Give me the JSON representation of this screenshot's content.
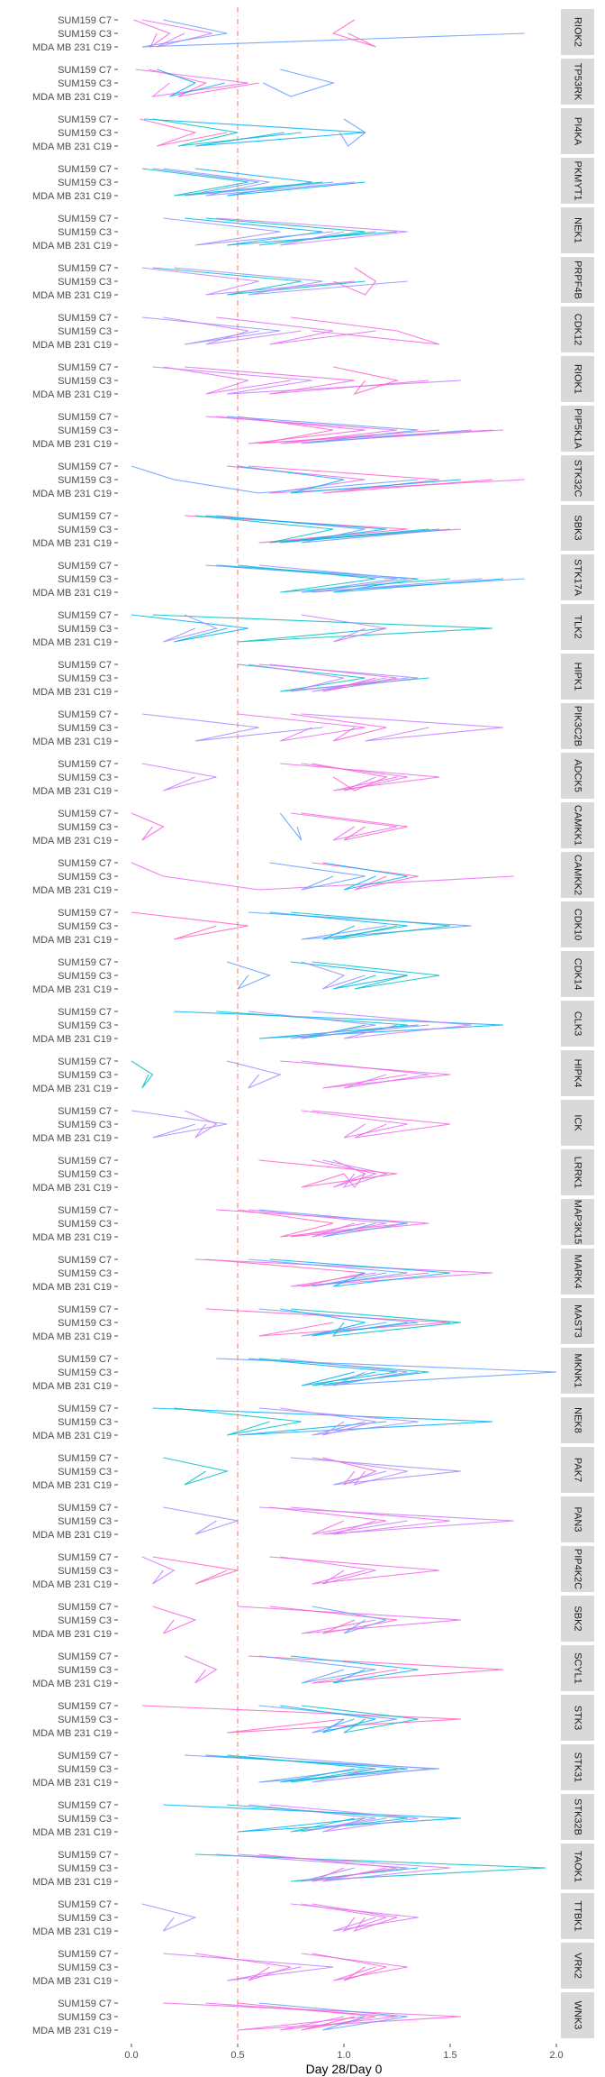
{
  "chart_data": {
    "type": "line",
    "xlabel": "Day 28/Day 0",
    "ylabel": "",
    "xlim": [
      0.0,
      2.0
    ],
    "x_ticks": [
      "0.0",
      "0.5",
      "1.0",
      "1.5",
      "2.0"
    ],
    "x_tick_values": [
      0.0,
      0.5,
      1.0,
      1.5,
      2.0
    ],
    "reference_line": {
      "x": 0.5,
      "style": "dashed",
      "color": "#f8766d"
    },
    "y_categories": [
      "SUM159 C7",
      "SUM159 C3",
      "MDA MB 231 C19"
    ],
    "series_colors": [
      "#f564e3",
      "#e76bf3",
      "#ff61c3",
      "#619cff",
      "#00b0f6",
      "#00bfc4",
      "#9590ff",
      "#c77cff"
    ],
    "panels": [
      {
        "label": "RIOK2",
        "lines": [
          [
            0.01,
            0.18,
            0.09,
            0.12
          ],
          [
            0.05,
            0.38,
            0.12,
            0.25
          ],
          [
            1.05,
            0.95,
            1.15,
            1.02
          ],
          [
            0.15,
            0.45,
            0.05,
            1.85
          ]
        ]
      },
      {
        "label": "TP53RK",
        "lines": [
          [
            0.02,
            0.55,
            0.1,
            0.18
          ],
          [
            0.08,
            0.35,
            0.22,
            0.6
          ],
          [
            0.7,
            0.95,
            0.75,
            0.62
          ],
          [
            0.12,
            0.3,
            0.18,
            0.44
          ]
        ]
      },
      {
        "label": "PI4KA",
        "lines": [
          [
            0.04,
            0.3,
            0.12,
            0.45
          ],
          [
            1.0,
            1.1,
            1.02,
            0.98
          ],
          [
            0.06,
            1.1,
            0.3,
            0.72
          ],
          [
            0.1,
            0.5,
            0.22,
            0.8
          ]
        ]
      },
      {
        "label": "PKMYT1",
        "lines": [
          [
            0.1,
            0.6,
            0.25,
            0.95
          ],
          [
            0.3,
            0.85,
            0.45,
            1.1
          ],
          [
            0.05,
            0.55,
            0.2,
            0.9
          ],
          [
            0.15,
            0.65,
            0.35,
            1.05
          ]
        ]
      },
      {
        "label": "NEK1",
        "lines": [
          [
            0.25,
            0.9,
            0.45,
            1.25
          ],
          [
            0.35,
            1.1,
            0.6,
            1.15
          ],
          [
            0.15,
            0.7,
            0.3,
            0.95
          ],
          [
            0.4,
            1.3,
            0.7,
            1.0
          ]
        ]
      },
      {
        "label": "PRPF4B",
        "lines": [
          [
            0.1,
            0.8,
            0.45,
            1.1
          ],
          [
            0.2,
            0.9,
            0.55,
            1.3
          ],
          [
            0.05,
            0.6,
            0.35,
            1.05
          ],
          [
            1.05,
            1.15,
            1.1,
            0.95
          ]
        ]
      },
      {
        "label": "CDK12",
        "lines": [
          [
            0.05,
            0.7,
            0.25,
            0.6
          ],
          [
            0.15,
            0.55,
            0.35,
            0.8
          ],
          [
            0.75,
            1.25,
            1.45,
            0.85
          ],
          [
            0.4,
            0.95,
            0.65,
            1.15
          ]
        ]
      },
      {
        "label": "RIOK1",
        "lines": [
          [
            0.1,
            0.85,
            0.45,
            1.55
          ],
          [
            0.25,
            1.05,
            0.65,
            1.4
          ],
          [
            0.15,
            0.55,
            0.35,
            0.75
          ],
          [
            0.95,
            1.25,
            1.05,
            1.1
          ]
        ]
      },
      {
        "label": "PIP5K1A",
        "lines": [
          [
            0.4,
            1.1,
            0.55,
            1.7
          ],
          [
            0.35,
            1.25,
            0.7,
            1.75
          ],
          [
            0.5,
            0.95,
            0.6,
            1.45
          ],
          [
            0.45,
            1.35,
            0.8,
            1.6
          ]
        ]
      },
      {
        "label": "STK32C",
        "lines": [
          [
            0.45,
            1.1,
            0.65,
            1.85
          ],
          [
            0.55,
            1.45,
            0.9,
            1.7
          ],
          [
            0.0,
            0.2,
            0.6,
            1.35
          ],
          [
            0.5,
            1.0,
            0.75,
            1.55
          ]
        ]
      },
      {
        "label": "SBK3",
        "lines": [
          [
            0.25,
            1.3,
            0.6,
            1.55
          ],
          [
            0.4,
            1.1,
            0.8,
            1.5
          ],
          [
            0.35,
            1.2,
            0.7,
            1.45
          ],
          [
            0.3,
            0.95,
            0.65,
            1.4
          ]
        ]
      },
      {
        "label": "STK17A",
        "lines": [
          [
            0.35,
            1.25,
            0.8,
            1.85
          ],
          [
            0.4,
            1.35,
            0.95,
            1.75
          ],
          [
            0.5,
            1.15,
            0.7,
            1.5
          ],
          [
            0.6,
            1.3,
            0.85,
            1.65
          ]
        ]
      },
      {
        "label": "TLK2",
        "lines": [
          [
            0.0,
            0.55,
            0.2,
            0.45
          ],
          [
            0.1,
            1.7,
            0.5,
            1.2
          ],
          [
            0.25,
            0.4,
            0.15,
            0.3
          ],
          [
            0.8,
            1.2,
            0.95,
            1.1
          ]
        ]
      },
      {
        "label": "HIPK1",
        "lines": [
          [
            0.5,
            1.1,
            0.7,
            1.4
          ],
          [
            0.6,
            1.35,
            0.85,
            1.2
          ],
          [
            0.55,
            1.0,
            0.75,
            1.3
          ],
          [
            0.65,
            1.25,
            0.9,
            1.15
          ]
        ]
      },
      {
        "label": "PIK3C2B",
        "lines": [
          [
            0.05,
            0.6,
            0.3,
            0.9
          ],
          [
            0.8,
            1.75,
            1.1,
            1.4
          ],
          [
            0.75,
            1.2,
            0.95,
            1.05
          ],
          [
            0.5,
            1.1,
            0.7,
            0.85
          ]
        ]
      },
      {
        "label": "ADCK5",
        "lines": [
          [
            0.05,
            0.4,
            0.15,
            0.3
          ],
          [
            0.7,
            1.45,
            0.95,
            1.25
          ],
          [
            0.8,
            1.3,
            1.0,
            1.15
          ],
          [
            0.85,
            1.2,
            1.05,
            0.95
          ]
        ]
      },
      {
        "label": "CAMKK1",
        "lines": [
          [
            0.0,
            0.15,
            0.05,
            0.1
          ],
          [
            0.75,
            1.25,
            0.95,
            1.05
          ],
          [
            0.8,
            1.3,
            1.0,
            1.1
          ],
          [
            0.7,
            0.75,
            0.8,
            0.78
          ]
        ]
      },
      {
        "label": "CAMKK2",
        "lines": [
          [
            0.0,
            0.15,
            0.6,
            1.8
          ],
          [
            0.85,
            1.35,
            1.05,
            1.2
          ],
          [
            0.65,
            1.1,
            0.8,
            0.95
          ],
          [
            0.9,
            1.3,
            1.0,
            1.15
          ]
        ]
      },
      {
        "label": "CDK10",
        "lines": [
          [
            0.0,
            0.55,
            0.2,
            0.4
          ],
          [
            0.55,
            1.6,
            0.8,
            1.2
          ],
          [
            0.65,
            1.3,
            0.9,
            1.05
          ],
          [
            0.75,
            1.5,
            0.95,
            1.25
          ]
        ]
      },
      {
        "label": "CDK14",
        "lines": [
          [
            0.45,
            0.65,
            0.5,
            0.55
          ],
          [
            0.75,
            1.3,
            0.95,
            1.15
          ],
          [
            0.85,
            1.45,
            1.05,
            1.3
          ],
          [
            0.8,
            1.0,
            0.9,
            1.1
          ]
        ]
      },
      {
        "label": "CLK3",
        "lines": [
          [
            0.2,
            1.75,
            0.6,
            1.35
          ],
          [
            0.4,
            1.3,
            0.8,
            1.1
          ],
          [
            0.55,
            1.15,
            0.75,
            1.4
          ],
          [
            0.85,
            1.6,
            1.0,
            1.25
          ]
        ]
      },
      {
        "label": "HIPK4",
        "lines": [
          [
            0.0,
            0.1,
            0.05,
            0.08
          ],
          [
            0.45,
            0.7,
            0.55,
            0.6
          ],
          [
            0.8,
            1.4,
            1.0,
            1.2
          ],
          [
            0.7,
            1.5,
            0.9,
            1.3
          ]
        ]
      },
      {
        "label": "ICK",
        "lines": [
          [
            0.0,
            0.45,
            0.1,
            0.3
          ],
          [
            0.25,
            0.4,
            0.3,
            0.35
          ],
          [
            0.85,
            1.5,
            1.05,
            1.2
          ],
          [
            0.8,
            1.3,
            1.0,
            1.1
          ]
        ]
      },
      {
        "label": "LRRK1",
        "lines": [
          [
            0.9,
            1.2,
            1.0,
            1.05
          ],
          [
            0.95,
            1.1,
            1.05,
            1.0
          ],
          [
            0.85,
            1.15,
            0.95,
            1.1
          ],
          [
            0.6,
            1.25,
            0.8,
            1.0
          ]
        ]
      },
      {
        "label": "MAP3K15",
        "lines": [
          [
            0.4,
            1.4,
            0.75,
            1.1
          ],
          [
            0.55,
            1.2,
            0.85,
            1.05
          ],
          [
            0.5,
            0.95,
            0.7,
            1.3
          ],
          [
            0.6,
            1.3,
            0.9,
            1.15
          ]
        ]
      },
      {
        "label": "MARK4",
        "lines": [
          [
            0.3,
            1.7,
            0.75,
            1.15
          ],
          [
            0.35,
            1.1,
            0.8,
            1.4
          ],
          [
            0.55,
            1.3,
            0.85,
            1.2
          ],
          [
            0.65,
            1.5,
            0.95,
            1.1
          ]
        ]
      },
      {
        "label": "MAST3",
        "lines": [
          [
            0.35,
            1.5,
            0.6,
            0.95
          ],
          [
            0.6,
            1.35,
            0.8,
            1.2
          ],
          [
            0.7,
            1.1,
            0.85,
            1.3
          ],
          [
            0.75,
            1.55,
            0.95,
            1.0
          ]
        ]
      },
      {
        "label": "MKNK1",
        "lines": [
          [
            0.4,
            2.0,
            0.9,
            1.35
          ],
          [
            0.55,
            1.25,
            0.8,
            1.05
          ],
          [
            0.6,
            1.4,
            0.85,
            1.15
          ],
          [
            0.7,
            1.3,
            0.95,
            1.1
          ]
        ]
      },
      {
        "label": "NEK8",
        "lines": [
          [
            0.1,
            1.7,
            0.5,
            1.2
          ],
          [
            0.2,
            0.8,
            0.45,
            0.65
          ],
          [
            0.6,
            1.35,
            0.85,
            1.1
          ],
          [
            0.7,
            1.15,
            0.9,
            1.0
          ]
        ]
      },
      {
        "label": "PAK7",
        "lines": [
          [
            0.15,
            0.45,
            0.25,
            0.35
          ],
          [
            0.75,
            1.55,
            0.95,
            1.2
          ],
          [
            0.85,
            1.3,
            1.05,
            1.1
          ],
          [
            0.9,
            1.15,
            1.0,
            1.05
          ]
        ]
      },
      {
        "label": "PAN3",
        "lines": [
          [
            0.15,
            0.5,
            0.3,
            0.4
          ],
          [
            0.6,
            1.8,
            0.9,
            1.3
          ],
          [
            0.65,
            1.2,
            0.85,
            1.0
          ],
          [
            0.75,
            1.5,
            0.95,
            1.15
          ]
        ]
      },
      {
        "label": "PIP4K2C",
        "lines": [
          [
            0.05,
            0.2,
            0.1,
            0.15
          ],
          [
            0.65,
            1.45,
            0.85,
            1.1
          ],
          [
            0.7,
            1.15,
            0.9,
            1.0
          ],
          [
            0.1,
            0.5,
            0.3,
            0.45
          ]
        ]
      },
      {
        "label": "SBK2",
        "lines": [
          [
            0.1,
            0.3,
            0.15,
            0.2
          ],
          [
            0.5,
            1.55,
            0.8,
            1.15
          ],
          [
            0.65,
            1.25,
            0.9,
            1.05
          ],
          [
            0.85,
            1.2,
            1.0,
            1.1
          ]
        ]
      },
      {
        "label": "SCYL1",
        "lines": [
          [
            0.25,
            0.4,
            0.3,
            0.35
          ],
          [
            0.55,
            1.75,
            0.85,
            1.25
          ],
          [
            0.6,
            1.15,
            0.8,
            1.0
          ],
          [
            0.75,
            1.35,
            0.95,
            1.1
          ]
        ]
      },
      {
        "label": "STK3",
        "lines": [
          [
            0.05,
            1.55,
            0.45,
            1.0
          ],
          [
            0.6,
            1.25,
            0.85,
            1.05
          ],
          [
            0.7,
            1.15,
            0.9,
            1.0
          ],
          [
            0.8,
            1.35,
            1.0,
            1.1
          ]
        ]
      },
      {
        "label": "STK31",
        "lines": [
          [
            0.25,
            1.45,
            0.6,
            1.1
          ],
          [
            0.35,
            1.3,
            0.7,
            1.05
          ],
          [
            0.45,
            1.15,
            0.75,
            1.25
          ],
          [
            0.55,
            1.4,
            0.85,
            1.15
          ]
        ]
      },
      {
        "label": "STK32B",
        "lines": [
          [
            0.15,
            1.55,
            0.5,
            1.1
          ],
          [
            0.45,
            1.3,
            0.75,
            1.05
          ],
          [
            0.55,
            1.15,
            0.8,
            1.2
          ],
          [
            0.65,
            1.35,
            0.9,
            1.1
          ]
        ]
      },
      {
        "label": "TAOK1",
        "lines": [
          [
            0.3,
            1.95,
            0.75,
            1.35
          ],
          [
            0.4,
            1.3,
            0.8,
            1.05
          ],
          [
            0.5,
            1.5,
            0.9,
            1.2
          ],
          [
            0.6,
            1.25,
            0.85,
            1.0
          ]
        ]
      },
      {
        "label": "TTBK1",
        "lines": [
          [
            0.05,
            0.3,
            0.15,
            0.2
          ],
          [
            0.75,
            1.35,
            0.95,
            1.15
          ],
          [
            0.85,
            1.25,
            1.05,
            1.1
          ],
          [
            0.8,
            1.2,
            1.0,
            1.05
          ]
        ]
      },
      {
        "label": "VRK2",
        "lines": [
          [
            0.15,
            0.95,
            0.45,
            0.8
          ],
          [
            0.3,
            0.75,
            0.55,
            0.65
          ],
          [
            0.8,
            1.3,
            0.95,
            1.15
          ],
          [
            0.85,
            1.2,
            1.0,
            1.1
          ]
        ]
      },
      {
        "label": "WNK3",
        "lines": [
          [
            0.15,
            1.55,
            0.5,
            1.1
          ],
          [
            0.35,
            1.25,
            0.7,
            1.0
          ],
          [
            0.5,
            1.15,
            0.8,
            1.05
          ],
          [
            0.6,
            1.3,
            0.9,
            1.1
          ]
        ]
      }
    ]
  }
}
